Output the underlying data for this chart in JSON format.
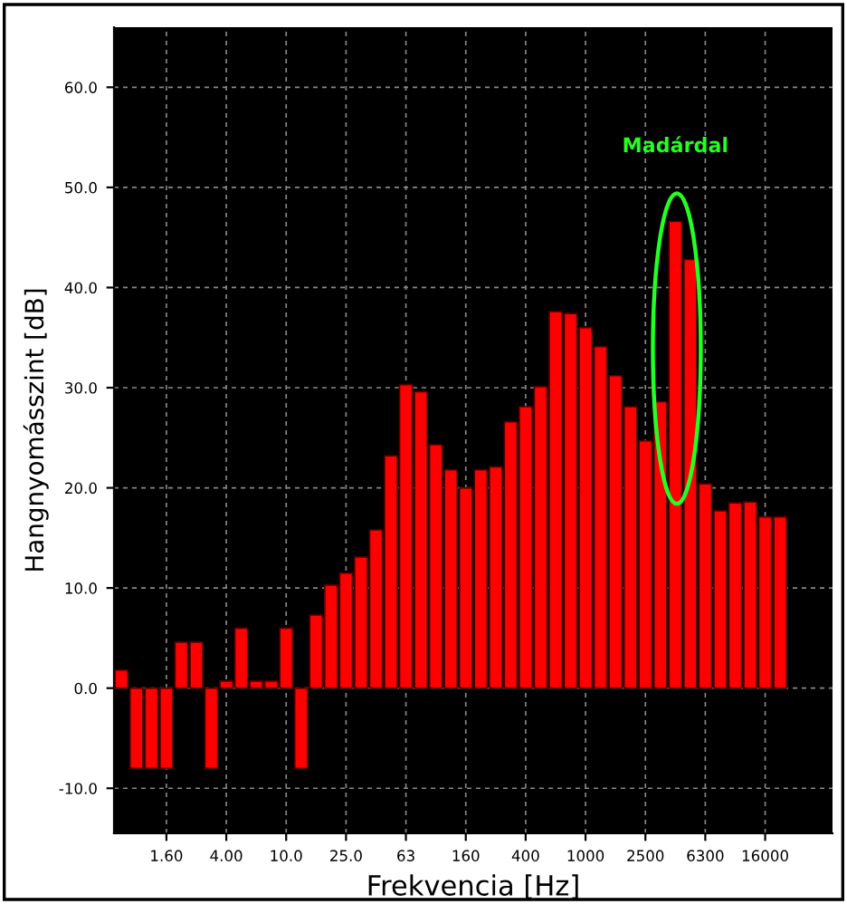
{
  "chart_data": {
    "type": "bar",
    "xlabel": "Frekvencia [Hz]",
    "ylabel": "Hangnyomásszint [dB]",
    "categories": [
      null,
      null,
      null,
      "1.60",
      null,
      null,
      null,
      "4.00",
      null,
      null,
      null,
      "10.0",
      null,
      null,
      null,
      "25.0",
      null,
      null,
      null,
      "63",
      null,
      null,
      null,
      "160",
      null,
      null,
      null,
      "400",
      null,
      null,
      null,
      "1000",
      null,
      null,
      null,
      "2500",
      null,
      null,
      null,
      "6300",
      null,
      null,
      null,
      "16000",
      null
    ],
    "values": [
      1.8,
      -8.0,
      -8.0,
      -8.0,
      4.6,
      4.6,
      -8.0,
      0.7,
      6.0,
      0.7,
      0.7,
      6.0,
      -8.0,
      7.3,
      10.3,
      11.5,
      13.1,
      15.8,
      23.2,
      30.3,
      29.6,
      24.3,
      21.8,
      20.0,
      21.8,
      22.1,
      26.6,
      28.1,
      30.1,
      37.6,
      37.4,
      36.0,
      34.1,
      31.2,
      28.1,
      24.7,
      28.6,
      46.6,
      42.8,
      20.4,
      17.7,
      18.5,
      18.6,
      17.1,
      17.1
    ],
    "color": "#ff0000",
    "ylim": [
      -14.5,
      66
    ],
    "yticks": [
      {
        "value": -10,
        "label": "-10.0"
      },
      {
        "value": 0,
        "label": "0.0"
      },
      {
        "value": 10,
        "label": "10.0"
      },
      {
        "value": 20,
        "label": "20.0"
      },
      {
        "value": 30,
        "label": "30.0"
      },
      {
        "value": 40,
        "label": "40.0"
      },
      {
        "value": 50,
        "label": "50.0"
      },
      {
        "value": 60,
        "label": "60.0"
      }
    ],
    "grid": true,
    "annotations": [
      "Madárdal"
    ]
  }
}
